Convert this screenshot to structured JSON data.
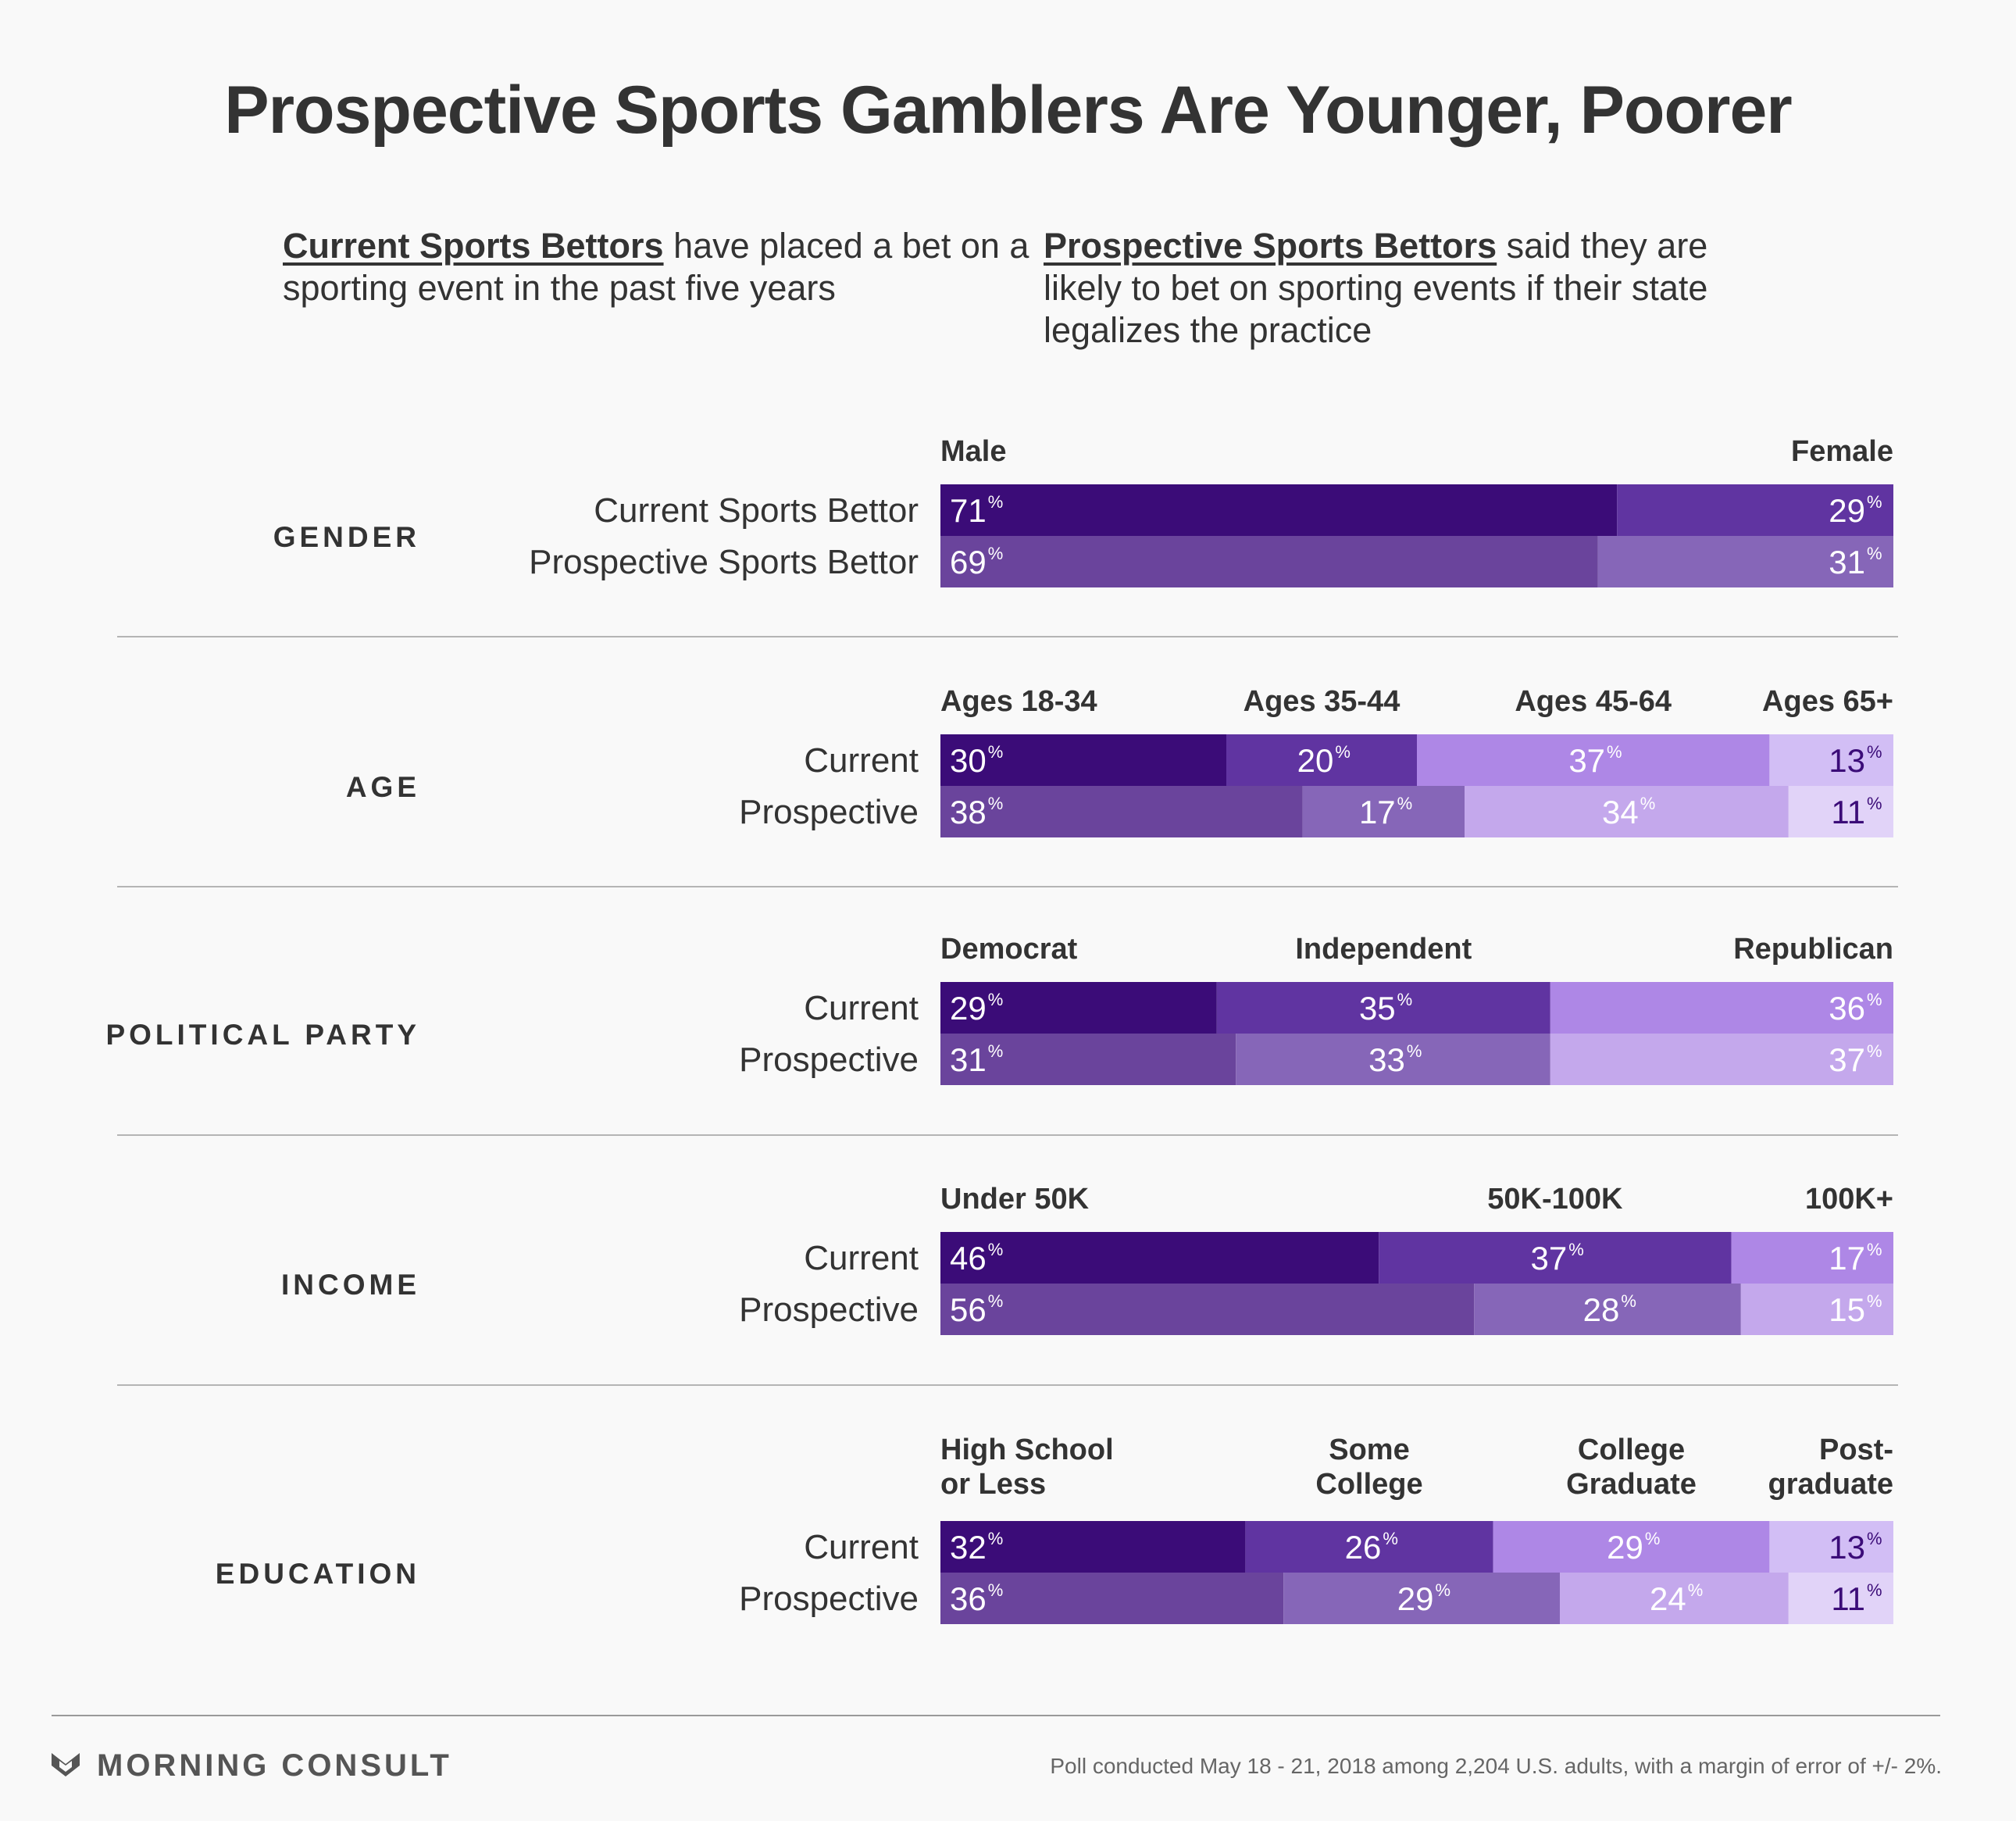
{
  "title": "Prospective Sports Gamblers Are Younger, Poorer",
  "intro": {
    "left_bold": "Current Sports Bettors",
    "left_rest": " have placed a bet on a sporting event in the past five years",
    "right_bold": "Prospective Sports Bettors",
    "right_rest": " said they are likely to bet on sporting events if their state legalizes the practice"
  },
  "footer": {
    "brand": "MORNING CONSULT",
    "note": "Poll conducted May 18 - 21, 2018 among 2,204 U.S. adults, with a margin of error of +/- 2%.",
    "logo_icon": "morning-consult-chevron-icon"
  },
  "colors": {
    "current": [
      "#3b0c78",
      "#6034a1",
      "#ae87e6",
      "#d2bef5"
    ],
    "prospective": [
      "#6a449c",
      "#8666b8",
      "#c4a8ec",
      "#e1d3f8"
    ],
    "current_two": [
      "#3b0c78",
      "#6034a1",
      "#ae87e6"
    ],
    "prospective_two": [
      "#6a449c",
      "#8666b8",
      "#c4a8ec"
    ],
    "dark_label": "#3b0c78"
  },
  "chart_data": [
    {
      "type": "bar",
      "stacked": true,
      "orientation": "horizontal",
      "group": "GENDER",
      "categories": [
        "Male",
        "Female"
      ],
      "rows": [
        {
          "label": "Current Sports Bettor",
          "values": [
            71,
            29
          ]
        },
        {
          "label": "Prospective Sports Bettor",
          "values": [
            69,
            31
          ]
        }
      ],
      "unit": "%"
    },
    {
      "type": "bar",
      "stacked": true,
      "orientation": "horizontal",
      "group": "AGE",
      "categories": [
        "Ages 18-34",
        "Ages 35-44",
        "Ages 45-64",
        "Ages 65+"
      ],
      "rows": [
        {
          "label": "Current",
          "values": [
            30,
            20,
            37,
            13
          ]
        },
        {
          "label": "Prospective",
          "values": [
            38,
            17,
            34,
            11
          ]
        }
      ],
      "unit": "%"
    },
    {
      "type": "bar",
      "stacked": true,
      "orientation": "horizontal",
      "group": "POLITICAL PARTY",
      "categories": [
        "Democrat",
        "Independent",
        "Republican"
      ],
      "rows": [
        {
          "label": "Current",
          "values": [
            29,
            35,
            36
          ]
        },
        {
          "label": "Prospective",
          "values": [
            31,
            33,
            37
          ]
        }
      ],
      "unit": "%"
    },
    {
      "type": "bar",
      "stacked": true,
      "orientation": "horizontal",
      "group": "INCOME",
      "categories": [
        "Under 50K",
        "50K-100K",
        "100K+"
      ],
      "rows": [
        {
          "label": "Current",
          "values": [
            46,
            37,
            17
          ]
        },
        {
          "label": "Prospective",
          "values": [
            56,
            28,
            15
          ]
        }
      ],
      "unit": "%"
    },
    {
      "type": "bar",
      "stacked": true,
      "orientation": "horizontal",
      "group": "EDUCATION",
      "categories": [
        "High School or Less",
        "Some College",
        "College Graduate",
        "Post-graduate"
      ],
      "category_lines": [
        [
          "High School",
          "or Less"
        ],
        [
          "Some",
          "College"
        ],
        [
          "College",
          "Graduate"
        ],
        [
          "Post-",
          "graduate"
        ]
      ],
      "rows": [
        {
          "label": "Current",
          "values": [
            32,
            26,
            29,
            13
          ]
        },
        {
          "label": "Prospective",
          "values": [
            36,
            29,
            24,
            11
          ]
        }
      ],
      "unit": "%"
    }
  ]
}
